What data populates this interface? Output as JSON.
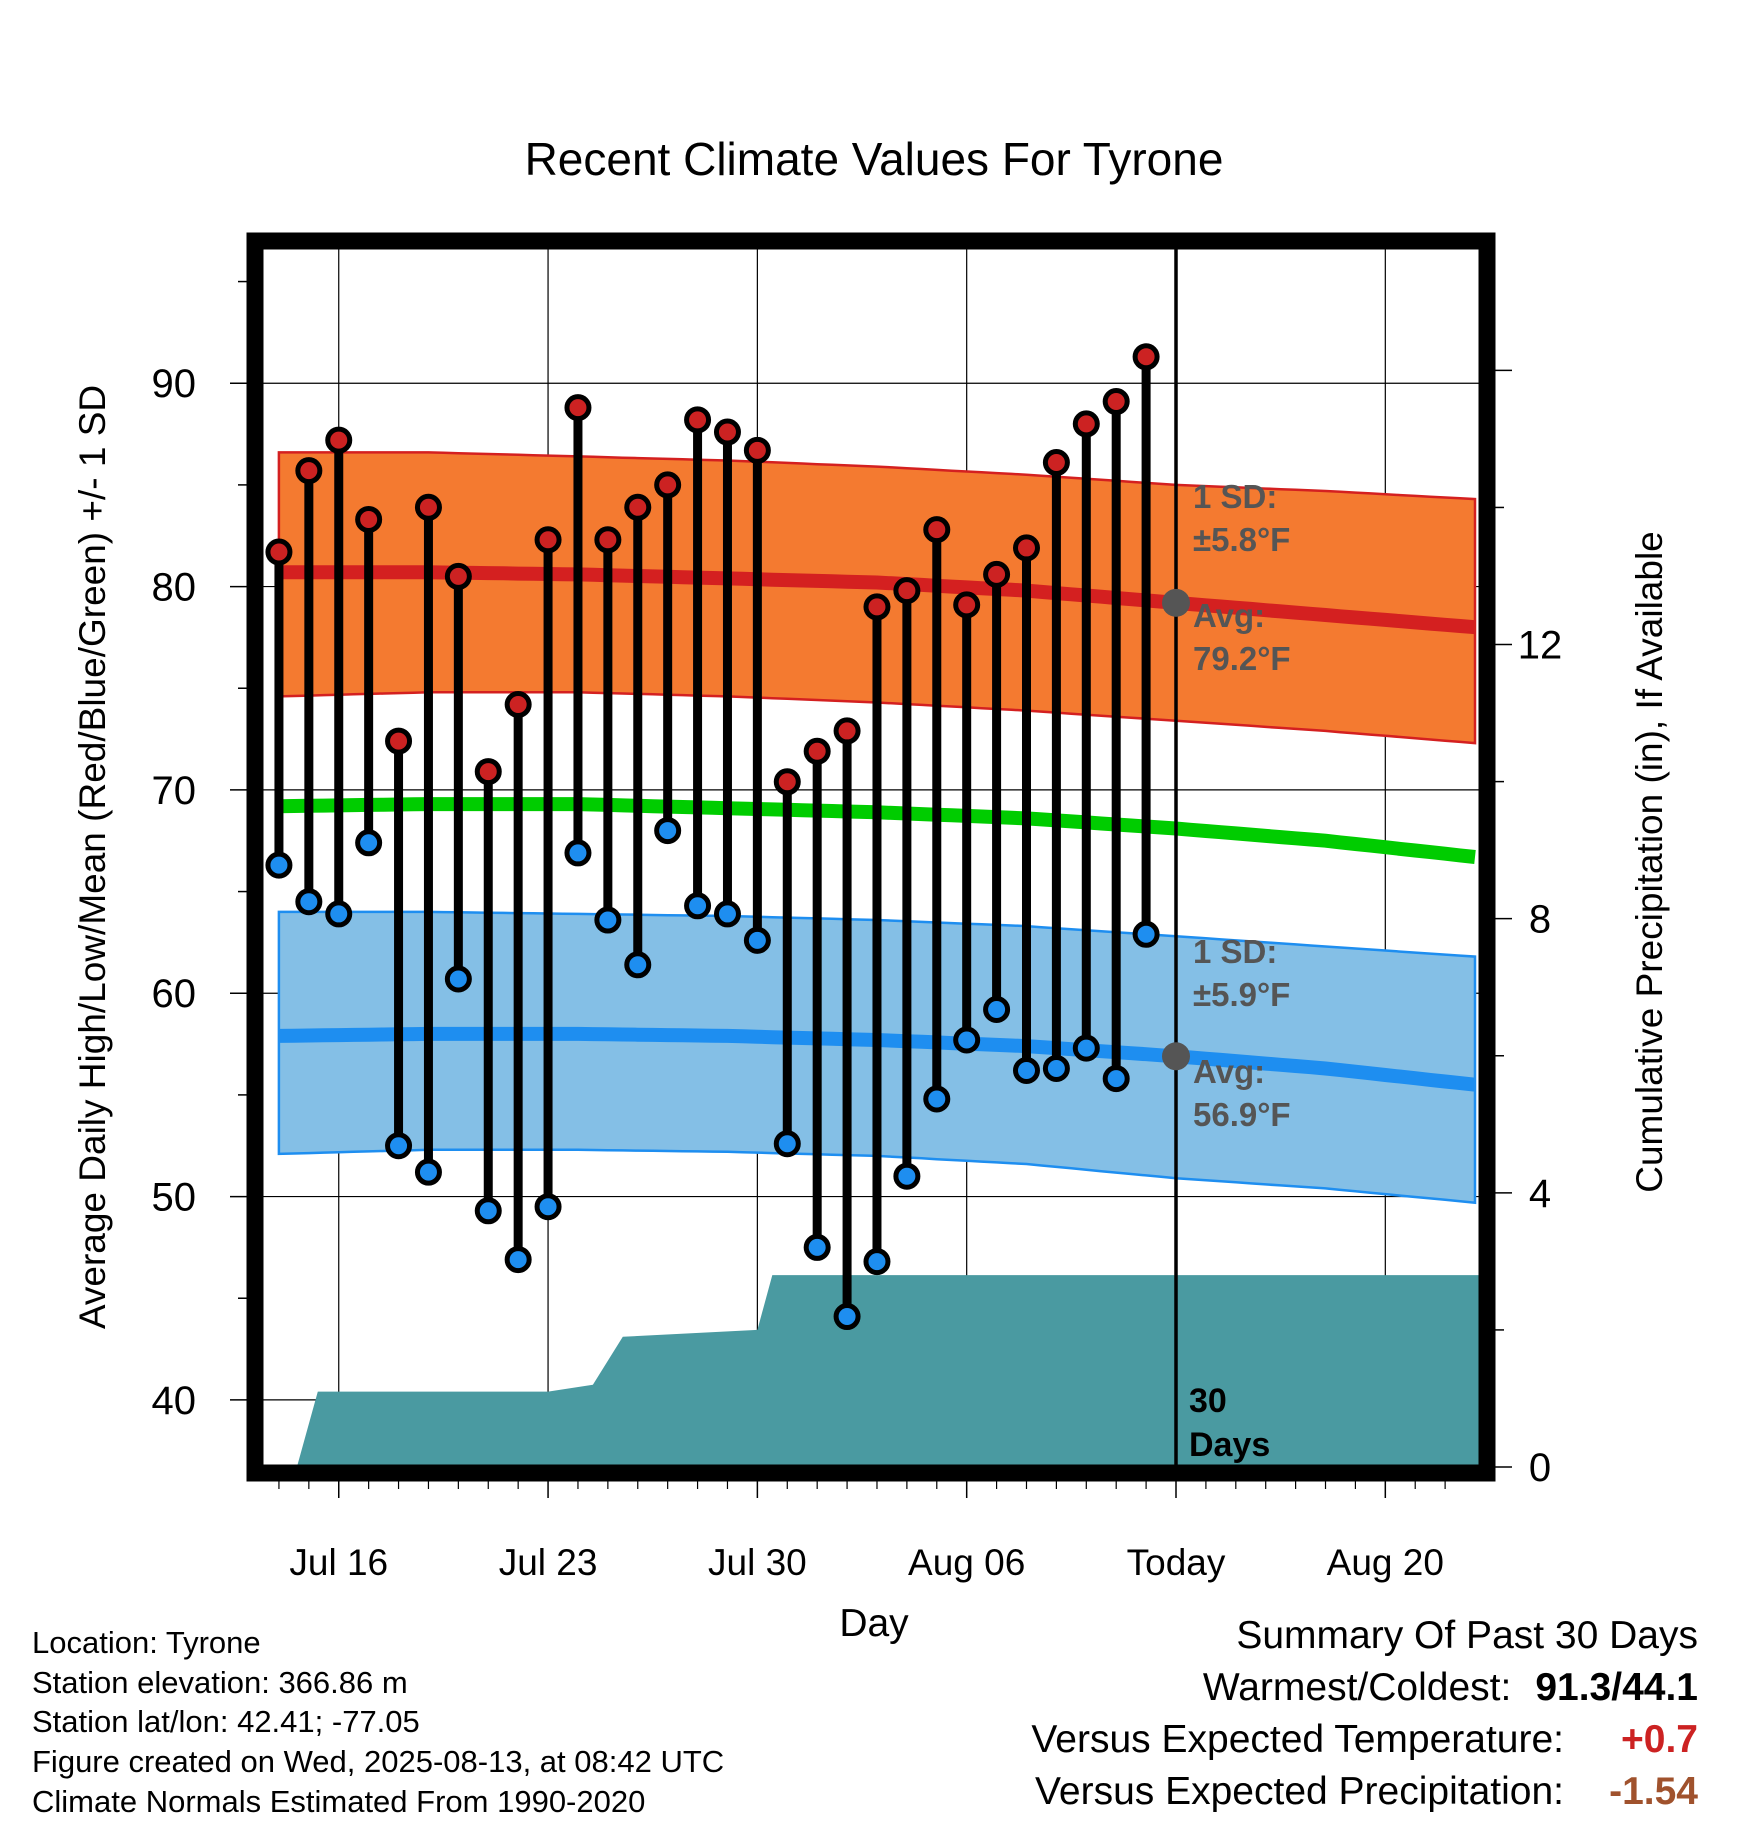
{
  "chart_data": {
    "type": "line",
    "title": "Recent Climate Values For Tyrone",
    "xlabel": "Day",
    "ylabel": "Average Daily High/Low/Mean (Red/Blue/Green) +/- 1 SD",
    "y2label": "Cumulative Precipitation (in), If Available",
    "x_ticks": [
      {
        "label": "Jul 16",
        "day": 2
      },
      {
        "label": "Jul 23",
        "day": 9
      },
      {
        "label": "Jul 30",
        "day": 16
      },
      {
        "label": "Aug 06",
        "day": 23
      },
      {
        "label": "Today",
        "day": 30
      },
      {
        "label": "Aug 20",
        "day": 37
      }
    ],
    "xlim": [
      -0.6,
      40.2
    ],
    "ylim": [
      36.7,
      96.7
    ],
    "y_ticks": [
      40,
      50,
      60,
      70,
      80,
      90
    ],
    "y2lim": [
      0,
      17.8
    ],
    "y2_ticks": [
      0,
      4,
      8,
      12
    ],
    "grid": true,
    "today_day": 30,
    "high_normal": {
      "days": [
        0,
        5,
        10,
        15,
        20,
        25,
        30,
        35,
        40
      ],
      "avg": [
        80.7,
        80.7,
        80.6,
        80.4,
        80.2,
        79.8,
        79.2,
        78.6,
        78.0
      ],
      "upper": [
        86.6,
        86.6,
        86.4,
        86.2,
        85.9,
        85.5,
        85.0,
        84.7,
        84.3
      ],
      "lower": [
        74.6,
        74.8,
        74.8,
        74.6,
        74.3,
        73.9,
        73.4,
        72.9,
        72.3
      ]
    },
    "low_normal": {
      "days": [
        0,
        5,
        10,
        15,
        20,
        25,
        30,
        35,
        40
      ],
      "avg": [
        57.9,
        58.0,
        58.0,
        57.9,
        57.7,
        57.4,
        56.9,
        56.3,
        55.5
      ],
      "upper": [
        64.0,
        64.0,
        63.9,
        63.8,
        63.6,
        63.3,
        62.8,
        62.3,
        61.8
      ],
      "lower": [
        52.1,
        52.3,
        52.3,
        52.2,
        52.0,
        51.6,
        50.9,
        50.4,
        49.7
      ]
    },
    "mean_normal": {
      "days": [
        0,
        5,
        10,
        15,
        20,
        25,
        30,
        35,
        40
      ],
      "values": [
        69.2,
        69.3,
        69.3,
        69.1,
        68.9,
        68.6,
        68.1,
        67.5,
        66.7
      ]
    },
    "daily": {
      "days": [
        0,
        1,
        2,
        3,
        4,
        5,
        6,
        7,
        8,
        9,
        10,
        11,
        12,
        13,
        14,
        15,
        16,
        17,
        18,
        19,
        20,
        21,
        22,
        23,
        24,
        25,
        26,
        27,
        28,
        29
      ],
      "high": [
        81.7,
        85.7,
        87.2,
        83.3,
        72.4,
        83.9,
        80.5,
        70.9,
        74.2,
        82.3,
        88.8,
        82.3,
        83.9,
        85.0,
        88.2,
        87.6,
        86.7,
        70.4,
        71.9,
        72.9,
        79.0,
        79.8,
        82.8,
        79.1,
        80.6,
        81.9,
        86.1,
        88.0,
        89.1,
        91.3
      ],
      "low": [
        66.3,
        64.5,
        63.9,
        67.4,
        52.5,
        51.2,
        60.7,
        49.3,
        46.9,
        49.5,
        66.9,
        63.6,
        61.4,
        68.0,
        64.3,
        63.9,
        62.6,
        52.6,
        47.5,
        44.1,
        46.8,
        51.0,
        54.8,
        57.7,
        59.2,
        56.2,
        56.3,
        57.3,
        55.8,
        62.9
      ]
    },
    "precip_cumulative": {
      "days": [
        -0.6,
        0.6,
        1.3,
        9.0,
        10.5,
        11.5,
        16.0,
        16.5,
        20.0,
        30.0,
        40.2
      ],
      "values": [
        0,
        0,
        1.1,
        1.1,
        1.2,
        1.9,
        2.0,
        2.8,
        2.8,
        2.8,
        2.8
      ]
    },
    "annotations": {
      "high_sd": "1 SD:",
      "high_sd_val": "±5.8°F",
      "high_avg": "Avg:",
      "high_avg_val": "79.2°F",
      "low_sd": "1 SD:",
      "low_sd_val": "±5.9°F",
      "low_avg": "Avg:",
      "low_avg_val": "56.9°F",
      "days_num": "30",
      "days_word": "Days"
    },
    "colors": {
      "high_band": "#f47a30",
      "high_line": "#d42020",
      "low_band": "#84bfe6",
      "low_line": "#1e8ef0",
      "mean_line": "#00cc00",
      "precip": "#4a9aa1",
      "high_dot": "#cc2222",
      "low_dot": "#1e8ef0",
      "annotation": "#555555",
      "today_dot": "#555555"
    }
  },
  "footer": {
    "location": "Location: Tyrone",
    "elevation": "Station elevation: 366.86 m",
    "latlon": "Station lat/lon: 42.41; -77.05",
    "created": "Figure created on Wed, 2025-08-13, at 08:42 UTC",
    "normals": "Climate Normals Estimated From 1990-2020"
  },
  "summary": {
    "title": "Summary Of Past 30 Days",
    "warm_cold_label": "Warmest/Coldest:",
    "warm_cold_value": "91.3/44.1",
    "temp_label": "Versus Expected Temperature:",
    "temp_value": "+0.7",
    "temp_color": "#cc2222",
    "precip_label": "Versus Expected Precipitation:",
    "precip_value": "-1.54",
    "precip_color": "#a0522d"
  }
}
